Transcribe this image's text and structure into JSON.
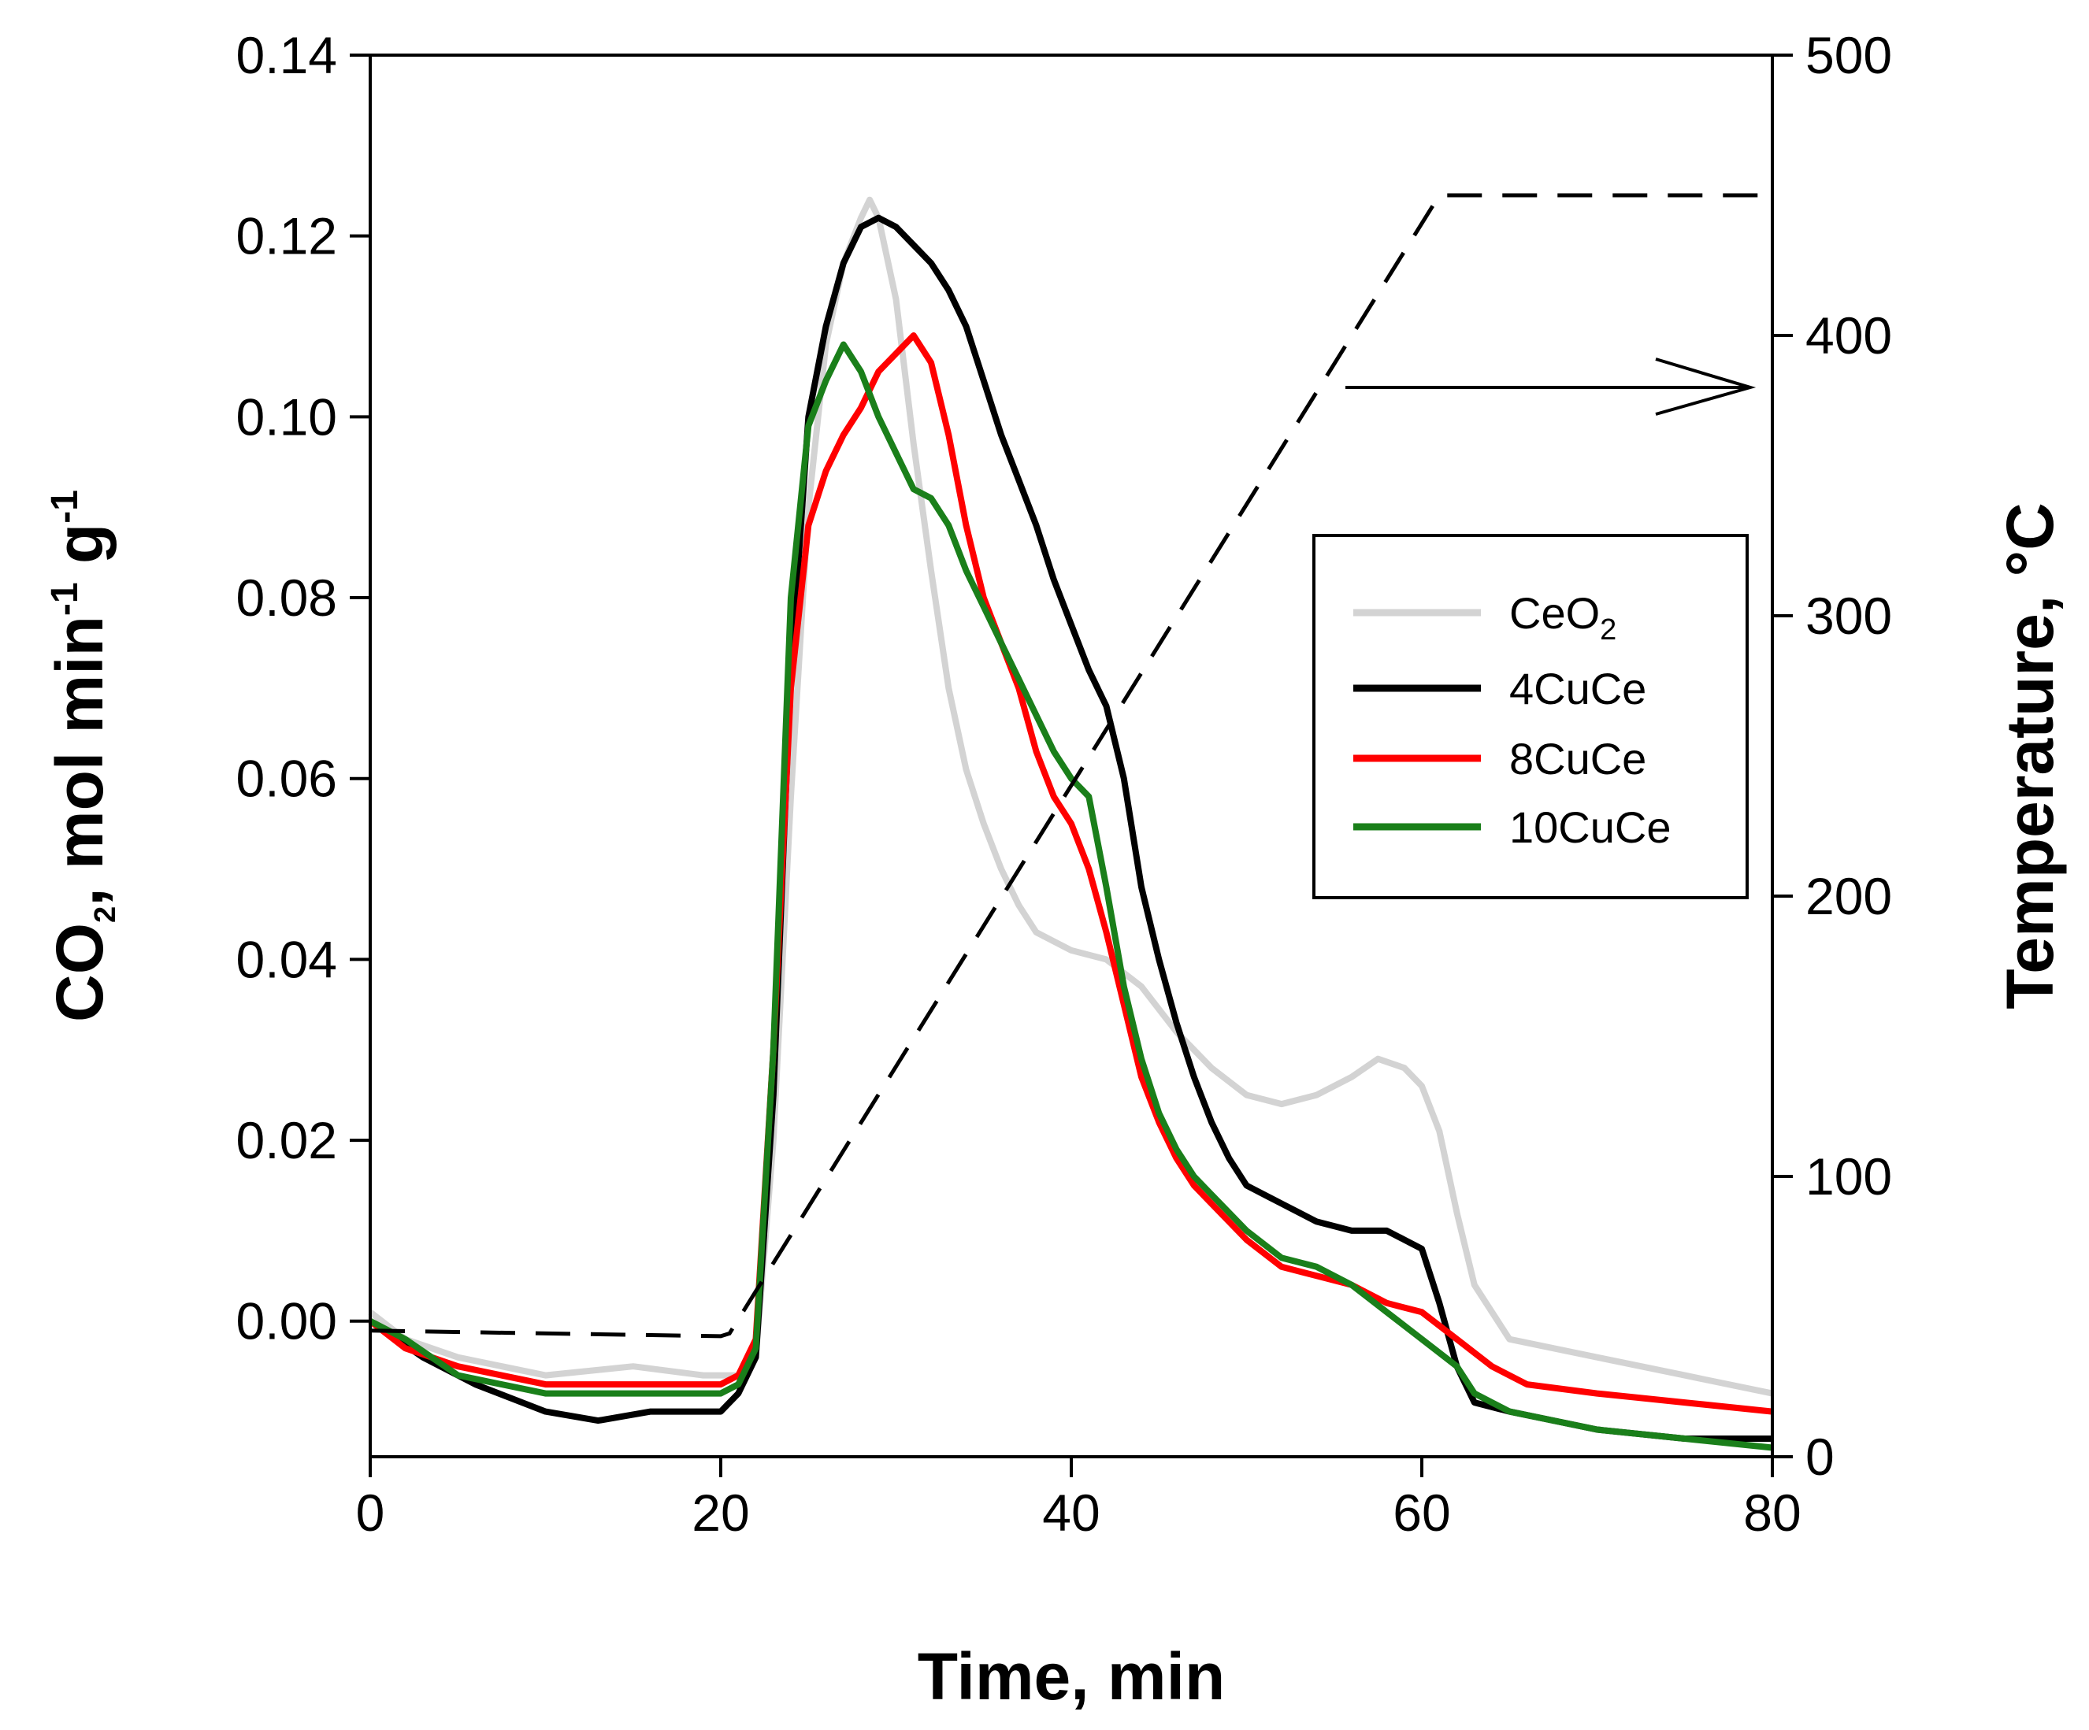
{
  "chart_data": {
    "type": "line",
    "xlabel": "Time, min",
    "ylabel": {
      "prefix": "CO",
      "sub": "2",
      "text1": ", mol min",
      "sup1": "-1",
      "text2": " g",
      "sup2": "-1"
    },
    "y2label": "Temperature, °C",
    "xlim": [
      0,
      80
    ],
    "ylim": [
      -0.015,
      0.14
    ],
    "y2lim": [
      0,
      500
    ],
    "xticks": [
      "0",
      "20",
      "40",
      "60",
      "80"
    ],
    "yticks": [
      "0.00",
      "0.02",
      "0.04",
      "0.06",
      "0.08",
      "0.10",
      "0.12",
      "0.14"
    ],
    "y2ticks": [
      "0",
      "100",
      "200",
      "300",
      "400",
      "500"
    ],
    "series": [
      {
        "name": "CeO2",
        "label": "CeO",
        "label_sub": "2",
        "color": "#d3d3d3",
        "x": [
          0,
          2,
          5,
          10,
          15,
          19,
          21,
          22,
          23,
          24,
          25,
          26,
          27,
          28,
          28.5,
          29,
          30,
          31,
          32,
          33,
          34,
          35,
          36,
          37,
          38,
          40,
          42,
          44,
          46,
          48,
          50,
          52,
          54,
          56,
          57.5,
          59,
          60,
          61,
          62,
          63,
          65,
          70,
          75,
          80
        ],
        "y": [
          0.001,
          -0.002,
          -0.004,
          -0.006,
          -0.005,
          -0.006,
          -0.006,
          -0.004,
          0.02,
          0.058,
          0.09,
          0.108,
          0.117,
          0.122,
          0.124,
          0.122,
          0.113,
          0.097,
          0.083,
          0.07,
          0.061,
          0.055,
          0.05,
          0.046,
          0.043,
          0.041,
          0.04,
          0.037,
          0.032,
          0.028,
          0.025,
          0.024,
          0.025,
          0.027,
          0.029,
          0.028,
          0.026,
          0.021,
          0.012,
          0.004,
          -0.002,
          -0.004,
          -0.006,
          -0.008
        ]
      },
      {
        "name": "4CuCe",
        "label": "4CuCe",
        "color": "#000000",
        "x": [
          0,
          3,
          6,
          10,
          13,
          16,
          19,
          20,
          21,
          22,
          23,
          24,
          25,
          26,
          27,
          28,
          29,
          30,
          31,
          32,
          33,
          34,
          35,
          36,
          37,
          38,
          39,
          40,
          41,
          42,
          43,
          44,
          45,
          46,
          47,
          48,
          49,
          50,
          52,
          54,
          56,
          58,
          59,
          60,
          61,
          62,
          63,
          65,
          70,
          75,
          80
        ],
        "y": [
          0,
          -0.004,
          -0.007,
          -0.01,
          -0.011,
          -0.01,
          -0.01,
          -0.01,
          -0.008,
          -0.004,
          0.025,
          0.072,
          0.1,
          0.11,
          0.117,
          0.121,
          0.122,
          0.121,
          0.119,
          0.117,
          0.114,
          0.11,
          0.104,
          0.098,
          0.093,
          0.088,
          0.082,
          0.077,
          0.072,
          0.068,
          0.06,
          0.048,
          0.04,
          0.033,
          0.027,
          0.022,
          0.018,
          0.015,
          0.013,
          0.011,
          0.01,
          0.01,
          0.009,
          0.008,
          0.002,
          -0.005,
          -0.009,
          -0.01,
          -0.012,
          -0.013,
          -0.013
        ]
      },
      {
        "name": "8CuCe",
        "label": "8CuCe",
        "color": "#ff0000",
        "x": [
          0,
          2,
          5,
          10,
          15,
          19,
          20,
          21,
          22,
          23,
          24,
          25,
          26,
          27,
          28,
          29,
          30,
          31,
          32,
          33,
          34,
          35,
          36,
          37,
          38,
          39,
          40,
          41,
          42,
          43,
          44,
          45,
          46,
          47,
          48,
          50,
          52,
          54,
          56,
          58,
          60,
          62,
          64,
          66,
          70,
          75,
          80
        ],
        "y": [
          0,
          -0.003,
          -0.005,
          -0.007,
          -0.007,
          -0.007,
          -0.007,
          -0.006,
          -0.002,
          0.03,
          0.07,
          0.088,
          0.094,
          0.098,
          0.101,
          0.105,
          0.107,
          0.109,
          0.106,
          0.098,
          0.088,
          0.08,
          0.075,
          0.07,
          0.063,
          0.058,
          0.055,
          0.05,
          0.043,
          0.035,
          0.027,
          0.022,
          0.018,
          0.015,
          0.013,
          0.009,
          0.006,
          0.005,
          0.004,
          0.002,
          0.001,
          -0.002,
          -0.005,
          -0.007,
          -0.008,
          -0.009,
          -0.01
        ]
      },
      {
        "name": "10CuCe",
        "label": "10CuCe",
        "color": "#1a7f1a",
        "x": [
          0,
          2,
          5,
          10,
          15,
          19,
          20,
          21,
          22,
          23,
          24,
          25,
          26,
          27,
          28,
          29,
          30,
          31,
          32,
          33,
          34,
          35,
          36,
          37,
          38,
          39,
          40,
          41,
          42,
          43,
          44,
          45,
          46,
          47,
          48,
          50,
          52,
          54,
          56,
          58,
          60,
          62,
          63,
          65,
          70,
          75,
          80
        ],
        "y": [
          0,
          -0.002,
          -0.006,
          -0.008,
          -0.008,
          -0.008,
          -0.008,
          -0.007,
          -0.003,
          0.03,
          0.08,
          0.099,
          0.104,
          0.108,
          0.105,
          0.1,
          0.096,
          0.092,
          0.091,
          0.088,
          0.083,
          0.079,
          0.075,
          0.071,
          0.067,
          0.063,
          0.06,
          0.058,
          0.048,
          0.037,
          0.029,
          0.023,
          0.019,
          0.016,
          0.014,
          0.01,
          0.007,
          0.006,
          0.004,
          0.001,
          -0.002,
          -0.005,
          -0.008,
          -0.01,
          -0.012,
          -0.013,
          -0.014
        ]
      }
    ],
    "temperature": {
      "name": "Temperature",
      "style": "dashed",
      "color": "#000000",
      "x": [
        0,
        20,
        20.5,
        61,
        62,
        80
      ],
      "y": [
        45,
        43,
        44,
        450,
        450,
        450
      ]
    },
    "legend": {
      "position": "center-right"
    },
    "annotation": {
      "type": "arrow",
      "points_to": "right-axis"
    }
  }
}
